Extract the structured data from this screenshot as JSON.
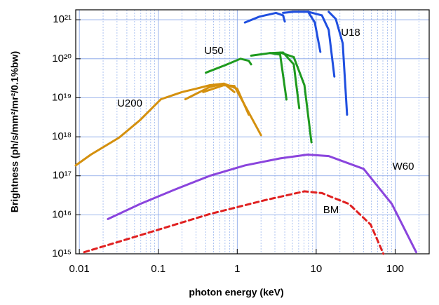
{
  "chart_data": {
    "type": "line",
    "xscale": "log",
    "yscale": "log",
    "xlabel": "photon energy (keV)",
    "ylabel": "Brightness (ph/s/mm²/mr²/0.1%bw)",
    "xlim": [
      0.009,
      270
    ],
    "ylim": [
      1000000000000000.0,
      1.8e+21
    ],
    "xticks": [
      0.01,
      0.1,
      1,
      10,
      100
    ],
    "xminorticks": [
      0.02,
      0.03,
      0.04,
      0.05,
      0.06,
      0.07,
      0.08,
      0.09,
      0.2,
      0.3,
      0.4,
      0.5,
      0.6,
      0.7,
      0.8,
      0.9,
      2,
      3,
      4,
      5,
      6,
      7,
      8,
      9,
      20,
      30,
      40,
      50,
      60,
      70,
      80,
      90,
      200
    ],
    "yticks": [
      {
        "value": 1000000000000000.0,
        "label": "10¹⁵"
      },
      {
        "value": 1e+16,
        "label": "10¹⁶"
      },
      {
        "value": 1e+17,
        "label": "10¹⁷"
      },
      {
        "value": 1e+18,
        "label": "10¹⁸"
      },
      {
        "value": 1e+19,
        "label": "10¹⁹"
      },
      {
        "value": 1e+20,
        "label": "10²⁰"
      },
      {
        "value": 1e+21,
        "label": "10²¹"
      }
    ],
    "grid": true,
    "series": [
      {
        "name": "U18",
        "color": "#1f4fe0",
        "curves": [
          {
            "x": [
              1.25,
              1.9,
              3.1,
              3.8,
              4.0
            ],
            "values": [
              8.5e+20,
              1.2e+21,
              1.5e+21,
              1.3e+21,
              9e+20
            ]
          },
          {
            "x": [
              3.8,
              5.2,
              7.9,
              9.6,
              11.3
            ],
            "values": [
              1.5e+21,
              1.6e+21,
              1.6e+21,
              8.5e+20,
              1.5e+20
            ]
          },
          {
            "x": [
              7.9,
              11.8,
              14.4,
              17
            ],
            "values": [
              1.6e+21,
              1.3e+21,
              5.5e+20,
              3.5e+19
            ]
          },
          {
            "x": [
              14.4,
              17.7,
              21.7,
              24.6
            ],
            "values": [
              1.6e+21,
              1.05e+21,
              2.5e+20,
              3.7e+18
            ]
          }
        ]
      },
      {
        "name": "U50",
        "color": "#1e9a1e",
        "curves": [
          {
            "x": [
              0.4,
              0.72,
              1.1,
              1.4,
              1.5
            ],
            "values": [
              4.4e+19,
              7e+19,
              1e+20,
              8.9e+19,
              7.2e+19
            ]
          },
          {
            "x": [
              1.5,
              2.6,
              3.5,
              4.2
            ],
            "values": [
              1.2e+20,
              1.4e+20,
              1.28e+20,
              9e+18
            ]
          },
          {
            "x": [
              2.6,
              3.8,
              5.2,
              6.1
            ],
            "values": [
              1.4e+20,
              1.45e+20,
              7.2e+19,
              5.4e+18
            ]
          },
          {
            "x": [
              3.5,
              5.2,
              7.1,
              8.7
            ],
            "values": [
              1.45e+20,
              1.1e+20,
              2.1e+19,
              7.2e+17
            ]
          }
        ]
      },
      {
        "name": "U200",
        "color": "#d4900e",
        "curves": [
          {
            "x": [
              0.009,
              0.014,
              0.032,
              0.059,
              0.108,
              0.2,
              0.3,
              0.45,
              0.68,
              0.92
            ],
            "values": [
              1.85e+17,
              3.5e+17,
              9.6e+17,
              2.7e+18,
              9.2e+18,
              1.4e+19,
              1.7e+19,
              2.1e+19,
              2.3e+19,
              1.4e+19
            ]
          },
          {
            "x": [
              0.22,
              0.45,
              0.68,
              1.0,
              1.4
            ],
            "values": [
              9.2e+18,
              1.9e+19,
              2.3e+19,
              1.7e+19,
              3.7e+18
            ]
          },
          {
            "x": [
              0.37,
              0.68,
              0.92,
              2.0
            ],
            "values": [
              1.4e+19,
              2.1e+19,
              2e+19,
              1.1e+18
            ]
          }
        ]
      },
      {
        "name": "W60",
        "color": "#8a44dd",
        "curves": [
          {
            "x": [
              0.023,
              0.059,
              0.16,
              0.45,
              1.25,
              3.5,
              7.8,
              14.4,
              40,
              91,
              185
            ],
            "values": [
              7800000000000000.0,
              1.9e+16,
              4.4e+16,
              1e+17,
              1.85e+17,
              2.8e+17,
              3.5e+17,
              3.2e+17,
              1.5e+17,
              1.9e+16,
              1100000000000000.0
            ]
          }
        ]
      },
      {
        "name": "BM",
        "color": "#e02020",
        "dashed": true,
        "curves": [
          {
            "x": [
              0.0115,
              0.059,
              0.45,
              2.3,
              7.1,
              11.8,
              26,
              49,
              71
            ],
            "values": [
              1100000000000000.0,
              3000000000000000.0,
              1.05e+16,
              2.4e+16,
              4e+16,
              3.6e+16,
              1.9e+16,
              5600000000000000.0,
              1000000000000000.0
            ]
          }
        ]
      }
    ]
  }
}
